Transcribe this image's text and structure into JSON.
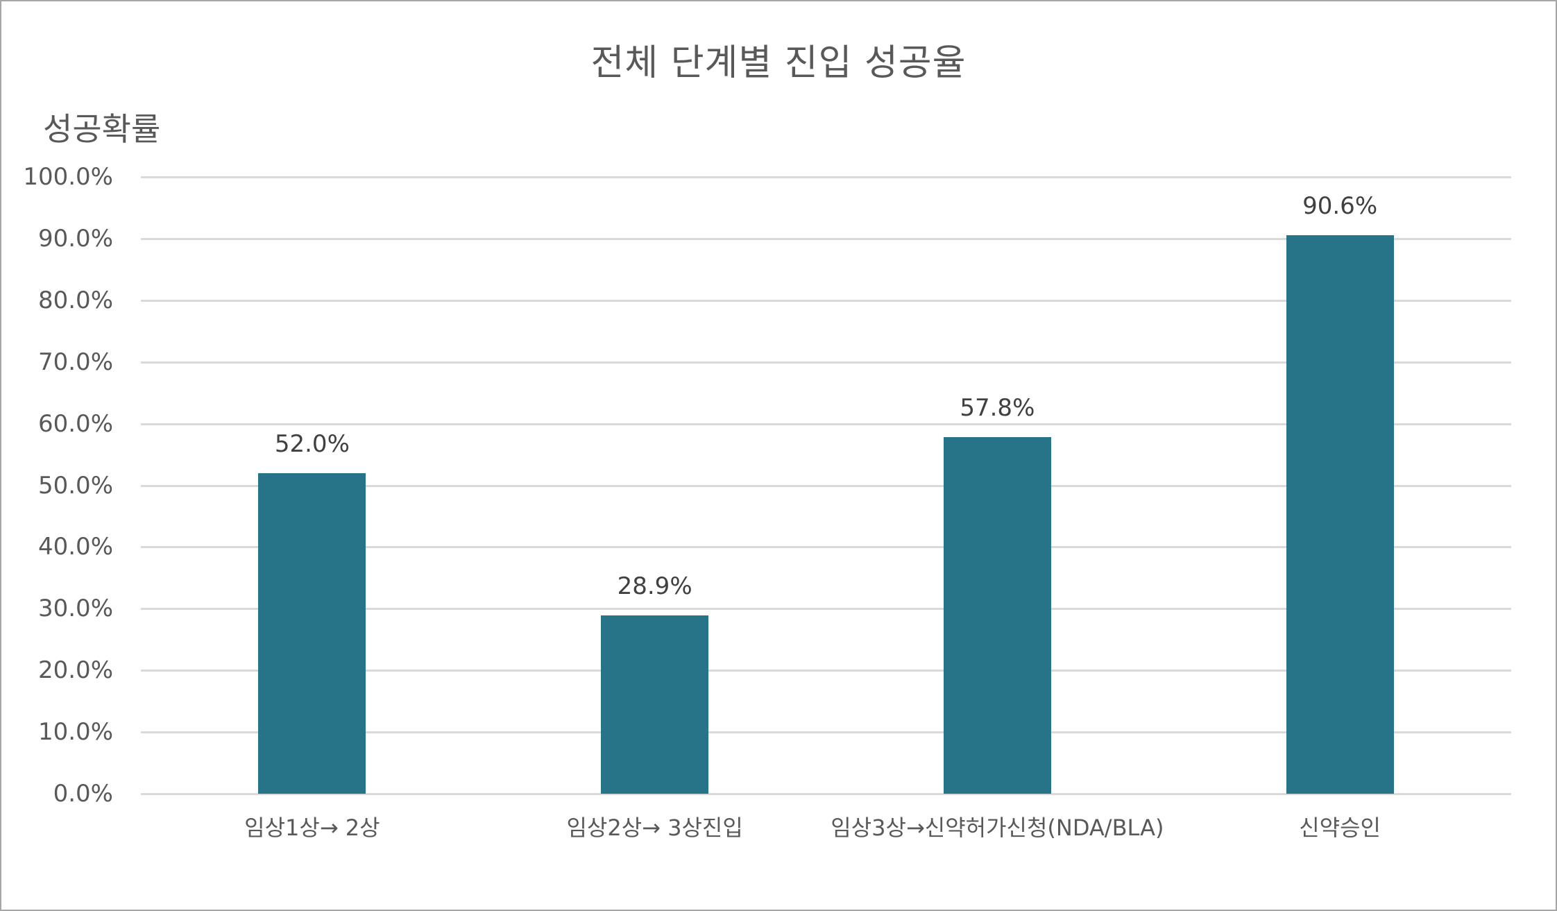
{
  "chart_data": {
    "type": "bar",
    "title": "전체 단계별 진입 성공율",
    "xlabel": "",
    "ylabel": "성공확률",
    "categories": [
      "임상1상→ 2상",
      "임상2상→ 3상진입",
      "임상3상→신약허가신청(NDA/BLA)",
      "신약승인"
    ],
    "values": [
      52.0,
      28.9,
      57.8,
      90.6
    ],
    "data_labels": [
      "52.0%",
      "28.9%",
      "57.8%",
      "90.6%"
    ],
    "ylim": [
      0,
      100
    ],
    "yticks": [
      "0.0%",
      "10.0%",
      "20.0%",
      "30.0%",
      "40.0%",
      "50.0%",
      "60.0%",
      "70.0%",
      "80.0%",
      "90.0%",
      "100.0%"
    ],
    "grid": true,
    "legend": null,
    "bar_color": "#277489"
  }
}
